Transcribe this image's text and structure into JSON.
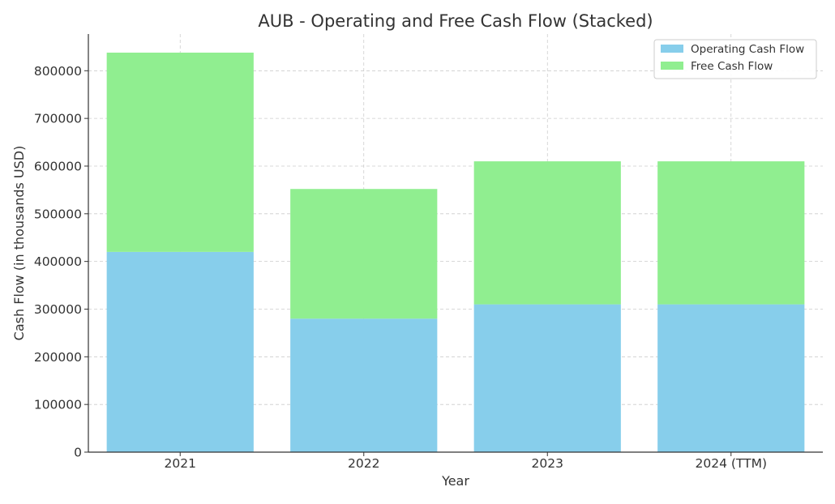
{
  "chart_data": {
    "type": "bar",
    "stacked": true,
    "title": "AUB - Operating and Free Cash Flow (Stacked)",
    "xlabel": "Year",
    "ylabel": "Cash Flow (in thousands USD)",
    "categories": [
      "2021",
      "2022",
      "2023",
      "2024 (TTM)"
    ],
    "series": [
      {
        "name": "Operating Cash Flow",
        "color": "#87CEEB",
        "values": [
          420000,
          280000,
          310000,
          310000
        ]
      },
      {
        "name": "Free Cash Flow",
        "color": "#90EE90",
        "values": [
          418000,
          272000,
          300000,
          300000
        ]
      }
    ],
    "ylim": [
      0,
      877000
    ],
    "yticks": [
      0,
      100000,
      200000,
      300000,
      400000,
      500000,
      600000,
      700000,
      800000
    ],
    "grid": true,
    "legend_position": "top-right"
  }
}
